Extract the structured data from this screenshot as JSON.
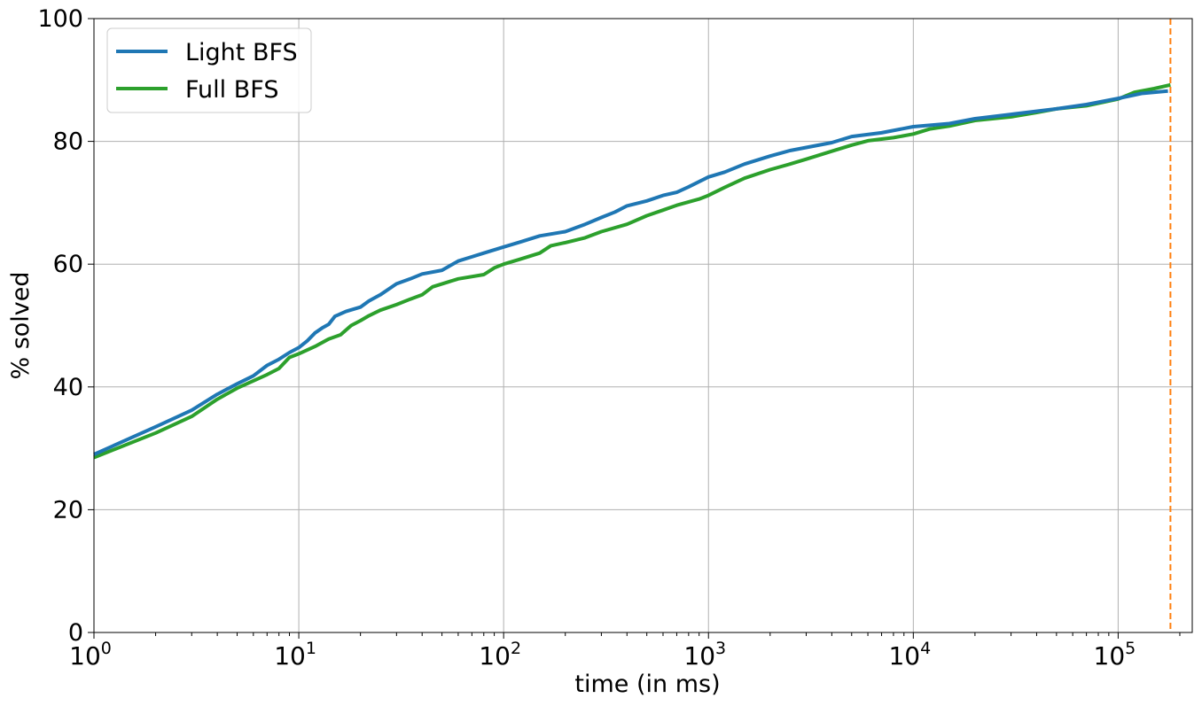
{
  "chart_data": {
    "type": "line",
    "title": "",
    "xlabel": "time (in ms)",
    "ylabel": "% solved",
    "xscale": "log",
    "xlim": [
      1,
      230000
    ],
    "ylim": [
      0,
      100
    ],
    "grid": true,
    "legend_position": "top-left",
    "x_ticks": [
      {
        "value": 1,
        "base": "10",
        "exp": "0"
      },
      {
        "value": 10,
        "base": "10",
        "exp": "1"
      },
      {
        "value": 100,
        "base": "10",
        "exp": "2"
      },
      {
        "value": 1000,
        "base": "10",
        "exp": "3"
      },
      {
        "value": 10000,
        "base": "10",
        "exp": "4"
      },
      {
        "value": 100000,
        "base": "10",
        "exp": "5"
      }
    ],
    "y_ticks": [
      {
        "value": 0,
        "label": "0"
      },
      {
        "value": 20,
        "label": "20"
      },
      {
        "value": 40,
        "label": "40"
      },
      {
        "value": 60,
        "label": "60"
      },
      {
        "value": 80,
        "label": "80"
      },
      {
        "value": 100,
        "label": "100"
      }
    ],
    "timeout_line": {
      "x": 180000,
      "color": "#ff7f0e",
      "style": "dashed"
    },
    "series": [
      {
        "name": "Light BFS",
        "color": "#1f77b4",
        "points": [
          [
            1,
            29.0
          ],
          [
            2,
            33.5
          ],
          [
            3,
            36.2
          ],
          [
            4,
            38.8
          ],
          [
            5,
            40.5
          ],
          [
            6,
            41.8
          ],
          [
            7,
            43.5
          ],
          [
            8,
            44.5
          ],
          [
            9,
            45.6
          ],
          [
            10,
            46.4
          ],
          [
            11,
            47.5
          ],
          [
            12,
            48.8
          ],
          [
            13,
            49.6
          ],
          [
            14,
            50.2
          ],
          [
            15,
            51.5
          ],
          [
            17,
            52.3
          ],
          [
            20,
            53.0
          ],
          [
            22,
            54.0
          ],
          [
            25,
            55.0
          ],
          [
            30,
            56.8
          ],
          [
            35,
            57.6
          ],
          [
            40,
            58.4
          ],
          [
            50,
            59.0
          ],
          [
            60,
            60.5
          ],
          [
            70,
            61.2
          ],
          [
            80,
            61.8
          ],
          [
            100,
            62.8
          ],
          [
            120,
            63.6
          ],
          [
            150,
            64.6
          ],
          [
            200,
            65.3
          ],
          [
            250,
            66.5
          ],
          [
            300,
            67.6
          ],
          [
            350,
            68.5
          ],
          [
            400,
            69.5
          ],
          [
            500,
            70.3
          ],
          [
            600,
            71.2
          ],
          [
            700,
            71.7
          ],
          [
            800,
            72.6
          ],
          [
            1000,
            74.2
          ],
          [
            1200,
            75.0
          ],
          [
            1500,
            76.3
          ],
          [
            2000,
            77.6
          ],
          [
            2500,
            78.5
          ],
          [
            3000,
            79.0
          ],
          [
            4000,
            79.8
          ],
          [
            5000,
            80.8
          ],
          [
            7000,
            81.4
          ],
          [
            10000,
            82.4
          ],
          [
            15000,
            82.9
          ],
          [
            20000,
            83.7
          ],
          [
            30000,
            84.4
          ],
          [
            50000,
            85.3
          ],
          [
            70000,
            86.0
          ],
          [
            100000,
            87.0
          ],
          [
            130000,
            87.8
          ],
          [
            175000,
            88.2
          ]
        ]
      },
      {
        "name": "Full BFS",
        "color": "#2ca02c",
        "points": [
          [
            1,
            28.5
          ],
          [
            2,
            32.5
          ],
          [
            3,
            35.2
          ],
          [
            4,
            38.0
          ],
          [
            5,
            39.8
          ],
          [
            6,
            41.0
          ],
          [
            7,
            42.0
          ],
          [
            8,
            43.0
          ],
          [
            9,
            44.8
          ],
          [
            10,
            45.4
          ],
          [
            12,
            46.6
          ],
          [
            14,
            47.8
          ],
          [
            16,
            48.5
          ],
          [
            18,
            50.0
          ],
          [
            20,
            50.8
          ],
          [
            22,
            51.6
          ],
          [
            25,
            52.5
          ],
          [
            30,
            53.4
          ],
          [
            35,
            54.3
          ],
          [
            40,
            55.0
          ],
          [
            45,
            56.3
          ],
          [
            60,
            57.6
          ],
          [
            80,
            58.3
          ],
          [
            90,
            59.4
          ],
          [
            100,
            60.0
          ],
          [
            120,
            60.8
          ],
          [
            150,
            61.8
          ],
          [
            170,
            63.0
          ],
          [
            200,
            63.5
          ],
          [
            250,
            64.3
          ],
          [
            300,
            65.3
          ],
          [
            400,
            66.5
          ],
          [
            500,
            67.9
          ],
          [
            600,
            68.8
          ],
          [
            700,
            69.6
          ],
          [
            900,
            70.6
          ],
          [
            1000,
            71.2
          ],
          [
            1200,
            72.5
          ],
          [
            1500,
            74.0
          ],
          [
            2000,
            75.4
          ],
          [
            2500,
            76.3
          ],
          [
            3000,
            77.1
          ],
          [
            4000,
            78.4
          ],
          [
            5000,
            79.4
          ],
          [
            6000,
            80.1
          ],
          [
            8000,
            80.6
          ],
          [
            10000,
            81.2
          ],
          [
            12000,
            82.0
          ],
          [
            15000,
            82.5
          ],
          [
            20000,
            83.4
          ],
          [
            30000,
            84.0
          ],
          [
            40000,
            84.7
          ],
          [
            50000,
            85.3
          ],
          [
            70000,
            85.8
          ],
          [
            100000,
            86.9
          ],
          [
            120000,
            88.0
          ],
          [
            150000,
            88.6
          ],
          [
            180000,
            89.2
          ]
        ]
      }
    ]
  }
}
